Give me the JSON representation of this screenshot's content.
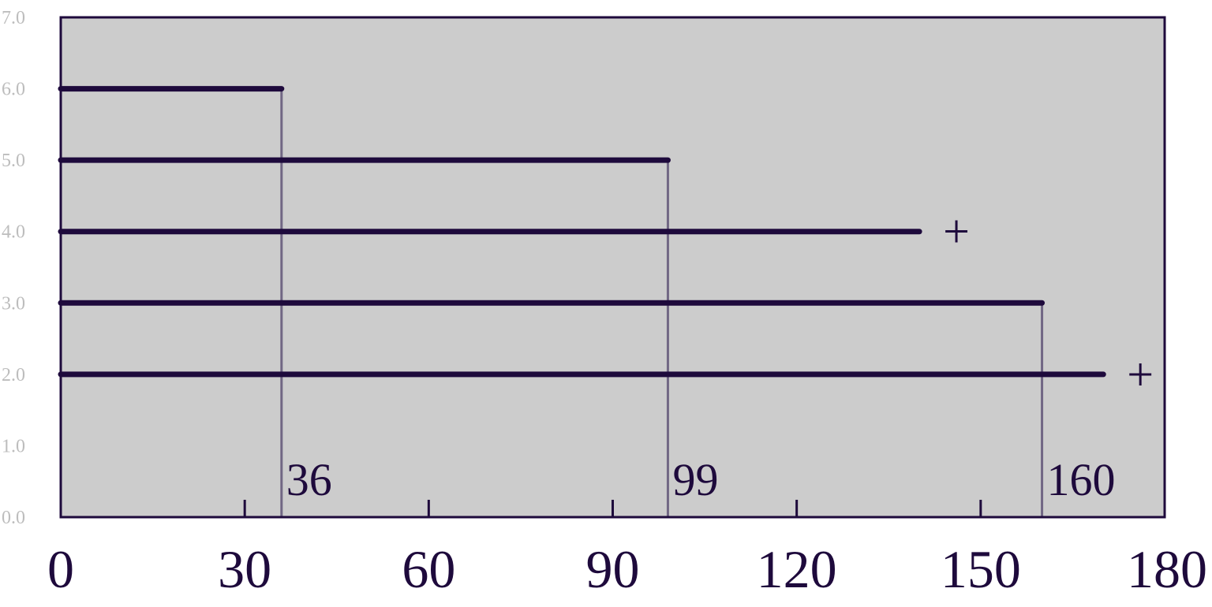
{
  "chart_data": {
    "type": "line",
    "title": "",
    "xlabel": "",
    "ylabel": "",
    "xlim": [
      0,
      180
    ],
    "ylim": [
      0,
      7
    ],
    "x_ticks": [
      0,
      30,
      60,
      90,
      120,
      150,
      180
    ],
    "x_tick_labels": [
      "0",
      "30",
      "60",
      "90",
      "120",
      "150",
      "180"
    ],
    "y_ticks": [
      0,
      1,
      2,
      3,
      4,
      5,
      6,
      7
    ],
    "y_tick_labels": [
      "0.0",
      "1.0",
      "2.0",
      "3.0",
      "4.0",
      "5.0",
      "6.0",
      "7.0"
    ],
    "grid": false,
    "legend": "none",
    "series": [
      {
        "y": 6.0,
        "x_start": 0,
        "x_end": 36,
        "censored": false
      },
      {
        "y": 5.0,
        "x_start": 0,
        "x_end": 99,
        "censored": false
      },
      {
        "y": 4.0,
        "x_start": 0,
        "x_end": 140,
        "censored": true,
        "marker": "+"
      },
      {
        "y": 3.0,
        "x_start": 0,
        "x_end": 160,
        "censored": false
      },
      {
        "y": 2.0,
        "x_start": 0,
        "x_end": 170,
        "censored": true,
        "marker": "+"
      }
    ],
    "event_lines": [
      {
        "x": 36,
        "from_y": 0,
        "to_y": 6.0,
        "label": "36"
      },
      {
        "x": 99,
        "from_y": 0,
        "to_y": 5.0,
        "label": "99"
      },
      {
        "x": 160,
        "from_y": 0,
        "to_y": 3.0,
        "label": "160"
      }
    ]
  },
  "colors": {
    "plot_background": "#cccccc",
    "frame": "#1e0a3c",
    "bar": "#1e0a3c",
    "event_line": "#716784",
    "y_tick_text": "#bdbdbd",
    "x_tick_text": "#1e0a3c",
    "label_text": "#1e0a3c"
  }
}
